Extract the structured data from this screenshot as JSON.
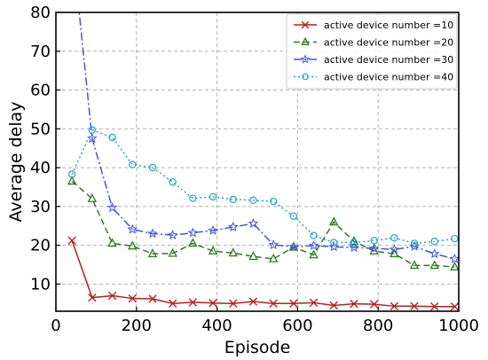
{
  "chart_data": {
    "type": "line",
    "xlabel": "Episode",
    "ylabel": "Average delay",
    "xlim": [
      0,
      1000
    ],
    "ylim": [
      3,
      80
    ],
    "xticks": [
      0,
      200,
      400,
      600,
      800,
      1000
    ],
    "yticks": [
      10,
      20,
      30,
      40,
      50,
      60,
      70,
      80
    ],
    "grid": true,
    "legend_position": "top-right",
    "x": [
      40,
      90,
      140,
      190,
      240,
      290,
      340,
      390,
      440,
      490,
      540,
      590,
      640,
      690,
      740,
      790,
      840,
      890,
      940,
      990
    ],
    "series": [
      {
        "name": "active device number =10",
        "color": "#b22222",
        "marker": "x",
        "linestyle": "solid",
        "values": [
          21.2,
          6.5,
          7.0,
          6.3,
          6.2,
          5.0,
          5.3,
          5.1,
          5.0,
          5.5,
          5.0,
          5.0,
          5.2,
          4.5,
          4.9,
          4.8,
          4.3,
          4.3,
          4.2,
          4.2
        ]
      },
      {
        "name": "active device number =20",
        "color": "#2e7d1e",
        "marker": "triangle",
        "linestyle": "dashed",
        "values": [
          36.5,
          32.0,
          20.5,
          19.8,
          17.8,
          17.9,
          20.5,
          18.5,
          18.0,
          17.1,
          16.5,
          19.5,
          17.5,
          26.0,
          21.0,
          18.5,
          17.8,
          14.8,
          14.8,
          14.4
        ]
      },
      {
        "name": "active device number =30",
        "color": "#4455dd",
        "marker": "star",
        "linestyle": "dashdot",
        "values": [
          98.0,
          47.5,
          29.7,
          24.1,
          23.0,
          22.6,
          23.2,
          23.8,
          24.7,
          25.6,
          20.1,
          19.6,
          19.9,
          19.6,
          19.4,
          19.2,
          18.9,
          19.7,
          17.8,
          16.5
        ]
      },
      {
        "name": "active device number =40",
        "color": "#1fa8c0",
        "marker": "circle",
        "linestyle": "dotted",
        "values": [
          38.3,
          49.7,
          47.8,
          40.8,
          40.0,
          36.3,
          32.1,
          32.5,
          31.8,
          31.6,
          31.3,
          27.5,
          22.5,
          20.7,
          20.7,
          21.2,
          21.9,
          20.5,
          21.0,
          21.7
        ]
      }
    ]
  }
}
